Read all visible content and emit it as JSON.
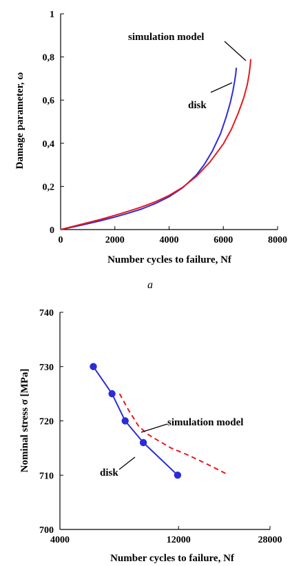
{
  "chart_data": [
    {
      "type": "line",
      "title": "",
      "xlabel": "Number cycles to failure, Nf",
      "ylabel": "Damage parameter, ω",
      "xlim": [
        0,
        8000
      ],
      "ylim": [
        0,
        1
      ],
      "xticks": [
        0,
        2000,
        4000,
        6000,
        8000
      ],
      "xtick_labels": [
        "0",
        "2000",
        "4000",
        "6000",
        "8000"
      ],
      "yticks": [
        0,
        0.2,
        0.4,
        0.6,
        0.8,
        1
      ],
      "ytick_labels": [
        "0",
        "0,2",
        "0,4",
        "0,6",
        "0,8",
        "1"
      ],
      "grid": false,
      "series": [
        {
          "name": "disk",
          "color": "#2b2bd9",
          "style": "solid",
          "x": [
            0,
            500,
            1000,
            1500,
            2000,
            2500,
            3000,
            3500,
            4000,
            4500,
            5000,
            5300,
            5600,
            5900,
            6100,
            6250,
            6350,
            6420,
            6460,
            6480
          ],
          "y": [
            0,
            0.013,
            0.027,
            0.042,
            0.058,
            0.076,
            0.096,
            0.121,
            0.152,
            0.194,
            0.252,
            0.302,
            0.365,
            0.445,
            0.52,
            0.585,
            0.64,
            0.69,
            0.725,
            0.75
          ]
        },
        {
          "name": "simulation model",
          "color": "#e8161b",
          "style": "solid",
          "x": [
            0,
            500,
            1000,
            1500,
            2000,
            2500,
            3000,
            3500,
            4000,
            4500,
            5000,
            5500,
            6000,
            6300,
            6550,
            6750,
            6880,
            6950,
            6990,
            7010
          ],
          "y": [
            0,
            0.016,
            0.032,
            0.048,
            0.066,
            0.085,
            0.105,
            0.129,
            0.158,
            0.196,
            0.246,
            0.312,
            0.397,
            0.466,
            0.54,
            0.61,
            0.67,
            0.72,
            0.76,
            0.79
          ]
        }
      ],
      "annotations": [
        {
          "text": "simulation model",
          "series": "simulation model"
        },
        {
          "text": "disk",
          "series": "disk"
        }
      ],
      "caption": "a"
    },
    {
      "type": "line",
      "title": "",
      "xlabel": "Number cycles to failure, Nf",
      "ylabel": "Nominal stress σ [MPa]",
      "xscale": "log",
      "xlim": [
        4000,
        28000
      ],
      "ylim": [
        700,
        740
      ],
      "xticks": [
        4000,
        12000,
        28000
      ],
      "xtick_labels": [
        "4000",
        "12000",
        "28000"
      ],
      "yticks": [
        700,
        710,
        720,
        730,
        740
      ],
      "ytick_labels": [
        "700",
        "710",
        "720",
        "730",
        "740"
      ],
      "grid": false,
      "series": [
        {
          "name": "disk",
          "color": "#2b2bd9",
          "style": "solid",
          "marker": "circle",
          "x": [
            5450,
            6480,
            7320,
            8660,
            11900
          ],
          "y": [
            730,
            725,
            720,
            716,
            710
          ]
        },
        {
          "name": "simulation model",
          "color": "#e8161b",
          "style": "dashed",
          "x": [
            6950,
            7550,
            8300,
            9050,
            10000,
            11200,
            12800,
            14600,
            16500,
            18600
          ],
          "y": [
            725,
            722,
            719,
            717.5,
            716.3,
            715,
            713.9,
            712.7,
            711.5,
            710.3
          ]
        }
      ],
      "annotations": [
        {
          "text": "simulation model",
          "series": "simulation model"
        },
        {
          "text": "disk",
          "series": "disk"
        }
      ]
    }
  ]
}
